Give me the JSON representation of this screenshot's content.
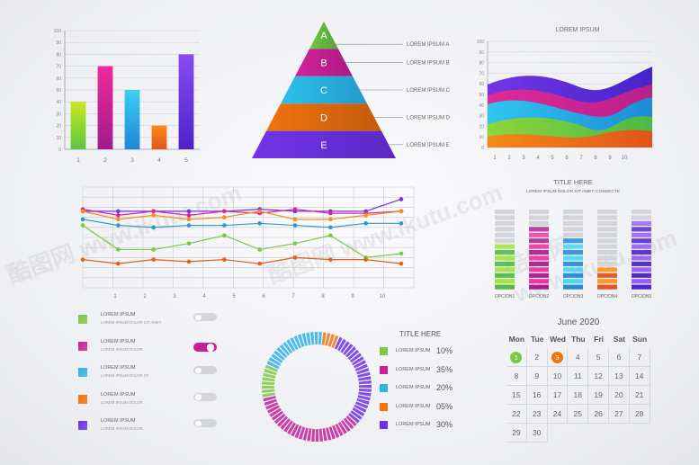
{
  "bar_chart": {
    "y_ticks": [
      "100",
      "90",
      "80",
      "70",
      "60",
      "50",
      "40",
      "30",
      "20",
      "10",
      "0"
    ],
    "categories": [
      "1",
      "2",
      "3",
      "4",
      "5"
    ],
    "values": [
      40,
      70,
      50,
      20,
      80
    ],
    "colors": [
      [
        "#c8e81e",
        "#5cc443"
      ],
      [
        "#ee2b9a",
        "#a3198c"
      ],
      [
        "#3ad0f0",
        "#1e86d8"
      ],
      [
        "#ff8a1a",
        "#e2561a"
      ],
      [
        "#8a4bf2",
        "#4d22c9"
      ]
    ]
  },
  "pyramid": {
    "levels": [
      {
        "letter": "A",
        "label": "LOREM IPSUM A",
        "color": "#6ec741"
      },
      {
        "letter": "B",
        "label": "LOREM IPSUM B",
        "color": "#d4229a"
      },
      {
        "letter": "C",
        "label": "LOREM IPSUM C",
        "color": "#2cc0ec"
      },
      {
        "letter": "D",
        "label": "LOREM IPSUM D",
        "color": "#f2720e"
      },
      {
        "letter": "E",
        "label": "LOREM IPSUM E",
        "color": "#7234e8"
      }
    ]
  },
  "area_chart": {
    "title": "LOREM IPSUM",
    "y_ticks": [
      "100",
      "90",
      "80",
      "70",
      "60",
      "50",
      "40",
      "30",
      "20",
      "10",
      "0"
    ],
    "x_ticks": [
      "1",
      "2",
      "3",
      "4",
      "5",
      "6",
      "7",
      "8",
      "9",
      "10"
    ]
  },
  "line_chart": {
    "x_ticks": [
      "1",
      "2",
      "3",
      "4",
      "5",
      "6",
      "7",
      "8",
      "9",
      "10"
    ],
    "series": [
      {
        "color": "#7235e6",
        "values": [
          76,
          76,
          76,
          76,
          76,
          78,
          76,
          76,
          76,
          88
        ]
      },
      {
        "color": "#d62a9a",
        "values": [
          78,
          72,
          76,
          72,
          76,
          74,
          78,
          74,
          74,
          76
        ]
      },
      {
        "color": "#f2901e",
        "values": [
          76,
          68,
          72,
          68,
          70,
          76,
          68,
          68,
          72,
          76
        ]
      },
      {
        "color": "#2d9bc8",
        "values": [
          68,
          62,
          60,
          62,
          62,
          64,
          62,
          60,
          64,
          64
        ]
      },
      {
        "color": "#7ac943",
        "values": [
          62,
          38,
          38,
          44,
          52,
          38,
          44,
          52,
          30,
          34
        ]
      },
      {
        "color": "#e1601a",
        "values": [
          28,
          24,
          28,
          26,
          28,
          24,
          30,
          28,
          28,
          24
        ]
      }
    ]
  },
  "level_bars": {
    "title": "TITLE HERE",
    "subtitle": "LOREM IPSUM DOLOR SIT AMET, CONSECTE",
    "labels": [
      "OPCION1",
      "OPCION2",
      "OPCION3",
      "OPCION4",
      "OPCION5"
    ],
    "levels": [
      0.55,
      0.82,
      0.65,
      0.3,
      0.86
    ],
    "colors": [
      [
        "#9ee43b",
        "#4cbd42"
      ],
      [
        "#ef2c9e",
        "#a5198c"
      ],
      [
        "#43d6f2",
        "#1f8ad7"
      ],
      [
        "#ff9324",
        "#e2541a"
      ],
      [
        "#9458f4",
        "#4a21c6"
      ]
    ]
  },
  "toggles": [
    {
      "color": "#7ac943",
      "title": "LOREM IPSUM",
      "sub": "LOREM IPSUM DOLOR SIT AMET.",
      "on": false
    },
    {
      "color": "#c7209a",
      "title": "LOREM IPSUM",
      "sub": "LOREM IPSUM DOLOR.",
      "on": true
    },
    {
      "color": "#2fb2e6",
      "title": "LOREM IPSUM",
      "sub": "LOREM IPSUM DOLOR ST.",
      "on": false
    },
    {
      "color": "#f2720e",
      "title": "LOREM IPSUM",
      "sub": "LOREM IPSUM DOLOR.",
      "on": false
    },
    {
      "color": "#6b33e4",
      "title": "LOREM IPSUM",
      "sub": "LOREM IPSUM DOLOR.",
      "on": false
    }
  ],
  "donut": {
    "title": "TITLE HERE",
    "items": [
      {
        "label": "LOREM IPSUM",
        "value": "10%",
        "fraction": 0.1,
        "color": "#7ac943"
      },
      {
        "label": "LOREM IPSUM",
        "value": "35%",
        "fraction": 0.35,
        "color": "#c7209a"
      },
      {
        "label": "LOREM IPSUM",
        "value": "20%",
        "fraction": 0.2,
        "color": "#2fb2e6"
      },
      {
        "label": "LOREM IPSUM",
        "value": "05%",
        "fraction": 0.05,
        "color": "#f2720e"
      },
      {
        "label": "LOREM IPSUM",
        "value": "30%",
        "fraction": 0.3,
        "color": "#6b33e4"
      }
    ]
  },
  "calendar": {
    "title": "June 2020",
    "days": [
      "Mon",
      "Tue",
      "Wed",
      "Thu",
      "Fri",
      "Sat",
      "Sun"
    ],
    "dates": [
      "1",
      "2",
      "3",
      "4",
      "5",
      "6",
      "7",
      "8",
      "9",
      "10",
      "11",
      "12",
      "13",
      "14",
      "15",
      "16",
      "17",
      "18",
      "19",
      "20",
      "21",
      "22",
      "23",
      "24",
      "25",
      "26",
      "27",
      "28",
      "29",
      "30"
    ],
    "highlight_green": "1",
    "highlight_orange": "3"
  },
  "watermark": "酷图网 www.ikutu.com",
  "chart_data": [
    {
      "type": "bar",
      "categories": [
        "1",
        "2",
        "3",
        "4",
        "5"
      ],
      "values": [
        40,
        70,
        50,
        20,
        80
      ],
      "ylim": [
        0,
        100
      ]
    },
    {
      "type": "line",
      "x": [
        "1",
        "2",
        "3",
        "4",
        "5",
        "6",
        "7",
        "8",
        "9",
        "10"
      ],
      "series": [
        {
          "values": [
            76,
            76,
            76,
            76,
            76,
            78,
            76,
            76,
            76,
            88
          ]
        },
        {
          "values": [
            78,
            72,
            76,
            72,
            76,
            74,
            78,
            74,
            74,
            76
          ]
        },
        {
          "values": [
            76,
            68,
            72,
            68,
            70,
            76,
            68,
            68,
            72,
            76
          ]
        },
        {
          "values": [
            68,
            62,
            60,
            62,
            62,
            64,
            62,
            60,
            64,
            64
          ]
        },
        {
          "values": [
            62,
            38,
            38,
            44,
            52,
            38,
            44,
            52,
            30,
            34
          ]
        },
        {
          "values": [
            28,
            24,
            28,
            26,
            28,
            24,
            30,
            28,
            28,
            24
          ]
        }
      ]
    },
    {
      "type": "bar",
      "categories": [
        "OPCION1",
        "OPCION2",
        "OPCION3",
        "OPCION4",
        "OPCION5"
      ],
      "values": [
        55,
        82,
        65,
        30,
        86
      ]
    },
    {
      "type": "pie",
      "categories": [
        "LOREM IPSUM",
        "LOREM IPSUM",
        "LOREM IPSUM",
        "LOREM IPSUM",
        "LOREM IPSUM"
      ],
      "values": [
        10,
        35,
        20,
        5,
        30
      ]
    }
  ]
}
